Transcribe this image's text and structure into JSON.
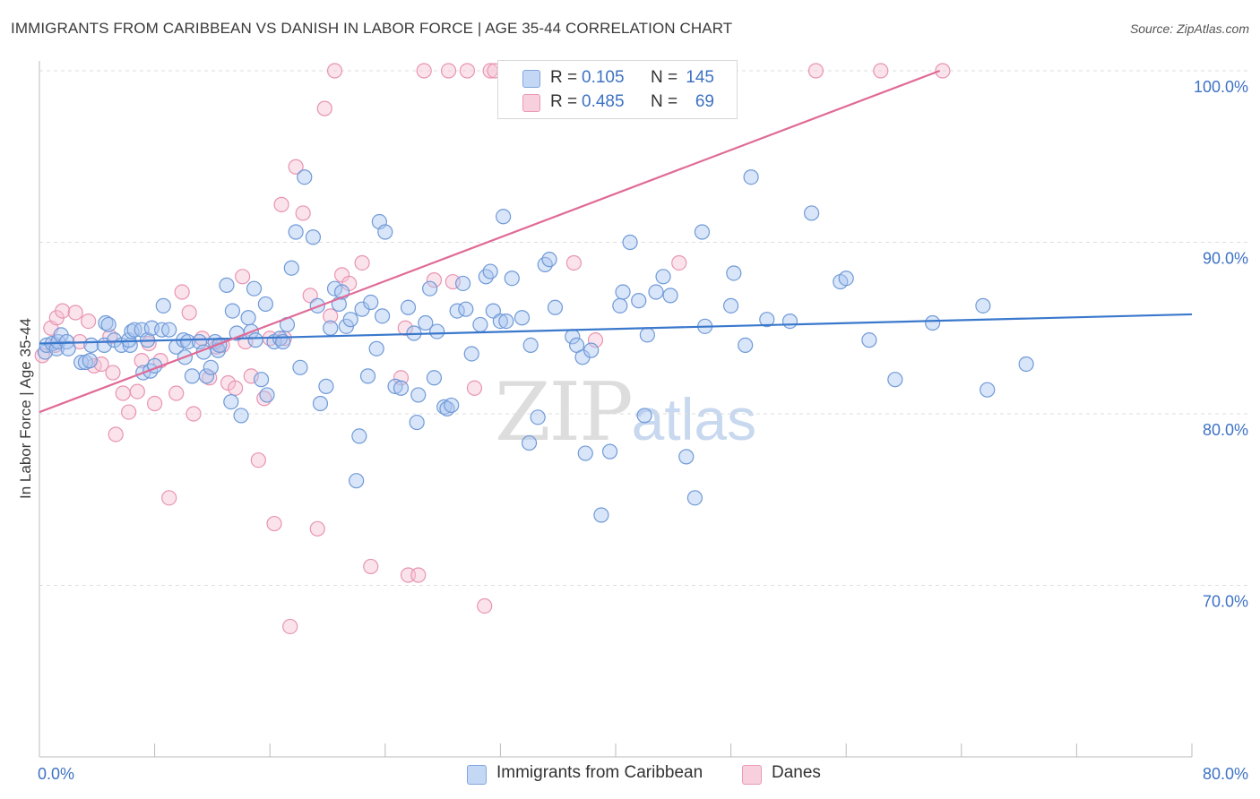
{
  "title": "IMMIGRANTS FROM CARIBBEAN VS DANISH IN LABOR FORCE | AGE 35-44 CORRELATION CHART",
  "source": "Source: ZipAtlas.com",
  "watermark": {
    "zip": "ZIP",
    "atlas": "atlas"
  },
  "legend": {
    "r_label": "R =",
    "n_label": "N =",
    "series": [
      {
        "name": "Immigrants from Caribbean",
        "r": "0.105",
        "n": "145"
      },
      {
        "name": "Danes",
        "r": "0.485",
        "n": "69"
      }
    ]
  },
  "colors": {
    "blue_fill": "#aac6f0",
    "blue_stroke": "#6f9ad8",
    "blue_line": "#3a78cc",
    "pink_fill": "#f6c1d2",
    "pink_stroke": "#e894b2",
    "pink_line": "#e06a96",
    "tick_text": "#3d72c4"
  },
  "chart_data": {
    "type": "scatter",
    "title": "IMMIGRANTS FROM CARIBBEAN VS DANISH IN LABOR FORCE | AGE 35-44 CORRELATION CHART",
    "xlabel": "",
    "ylabel": "In Labor Force | Age 35-44",
    "xlim": [
      0,
      80
    ],
    "ylim": [
      60,
      100
    ],
    "x_tick_labels": [
      "0.0%",
      "80.0%"
    ],
    "y_ticks": [
      70,
      80,
      90,
      100
    ],
    "y_tick_labels": [
      "70.0%",
      "80.0%",
      "90.0%",
      "100.0%"
    ],
    "grid": true,
    "series": [
      {
        "name": "Immigrants from Caribbean",
        "trend": {
          "x": [
            0,
            80
          ],
          "y": [
            84.1,
            85.8
          ]
        },
        "points": [
          [
            0.4,
            83.6
          ],
          [
            0.5,
            84.0
          ],
          [
            0.9,
            84.1
          ],
          [
            1.2,
            83.8
          ],
          [
            1.3,
            84.2
          ],
          [
            1.5,
            84.6
          ],
          [
            1.9,
            84.2
          ],
          [
            2.0,
            83.8
          ],
          [
            2.9,
            83.0
          ],
          [
            3.2,
            83.0
          ],
          [
            3.5,
            83.1
          ],
          [
            3.6,
            84.0
          ],
          [
            4.5,
            84.0
          ],
          [
            4.6,
            85.3
          ],
          [
            4.8,
            85.2
          ],
          [
            5.2,
            84.3
          ],
          [
            5.7,
            84.0
          ],
          [
            6.3,
            84.0
          ],
          [
            6.2,
            84.3
          ],
          [
            6.4,
            84.8
          ],
          [
            6.6,
            84.9
          ],
          [
            7.1,
            84.9
          ],
          [
            7.2,
            82.4
          ],
          [
            7.5,
            84.3
          ],
          [
            7.7,
            82.5
          ],
          [
            7.8,
            85.0
          ],
          [
            8.0,
            82.8
          ],
          [
            8.5,
            84.9
          ],
          [
            8.6,
            86.3
          ],
          [
            9.0,
            84.9
          ],
          [
            9.5,
            83.9
          ],
          [
            10.0,
            84.3
          ],
          [
            10.1,
            83.3
          ],
          [
            10.3,
            84.2
          ],
          [
            10.6,
            82.2
          ],
          [
            11.1,
            84.2
          ],
          [
            11.4,
            83.6
          ],
          [
            11.6,
            82.2
          ],
          [
            11.9,
            82.7
          ],
          [
            12.2,
            84.2
          ],
          [
            12.4,
            83.7
          ],
          [
            12.5,
            84.0
          ],
          [
            13.0,
            87.5
          ],
          [
            13.3,
            80.7
          ],
          [
            13.4,
            86.0
          ],
          [
            13.7,
            84.7
          ],
          [
            14.0,
            79.9
          ],
          [
            14.5,
            85.6
          ],
          [
            14.7,
            84.8
          ],
          [
            14.9,
            87.3
          ],
          [
            15.0,
            84.3
          ],
          [
            15.4,
            82.0
          ],
          [
            15.7,
            86.4
          ],
          [
            15.8,
            81.1
          ],
          [
            16.3,
            84.2
          ],
          [
            16.7,
            84.4
          ],
          [
            16.9,
            84.2
          ],
          [
            17.2,
            85.2
          ],
          [
            17.5,
            88.5
          ],
          [
            17.8,
            90.6
          ],
          [
            18.1,
            82.7
          ],
          [
            18.4,
            93.8
          ],
          [
            19.0,
            90.3
          ],
          [
            19.3,
            86.3
          ],
          [
            19.5,
            80.6
          ],
          [
            19.9,
            81.6
          ],
          [
            20.2,
            85.0
          ],
          [
            20.5,
            87.3
          ],
          [
            20.8,
            86.4
          ],
          [
            21.0,
            87.1
          ],
          [
            21.3,
            85.1
          ],
          [
            21.6,
            85.5
          ],
          [
            22.0,
            76.1
          ],
          [
            22.2,
            78.7
          ],
          [
            22.4,
            86.1
          ],
          [
            22.8,
            82.2
          ],
          [
            23.0,
            86.5
          ],
          [
            23.4,
            83.8
          ],
          [
            23.6,
            91.2
          ],
          [
            23.8,
            85.7
          ],
          [
            24.0,
            90.6
          ],
          [
            24.7,
            81.6
          ],
          [
            25.1,
            81.5
          ],
          [
            25.6,
            86.2
          ],
          [
            26.0,
            84.7
          ],
          [
            26.2,
            79.5
          ],
          [
            26.3,
            81.1
          ],
          [
            26.8,
            85.3
          ],
          [
            27.1,
            87.3
          ],
          [
            27.4,
            82.1
          ],
          [
            27.6,
            84.8
          ],
          [
            28.1,
            80.4
          ],
          [
            28.3,
            80.3
          ],
          [
            28.6,
            80.5
          ],
          [
            29.0,
            86.0
          ],
          [
            29.4,
            87.6
          ],
          [
            29.6,
            86.1
          ],
          [
            30.0,
            83.5
          ],
          [
            30.6,
            85.2
          ],
          [
            31.0,
            88.0
          ],
          [
            31.3,
            88.3
          ],
          [
            31.5,
            86.0
          ],
          [
            32.0,
            85.4
          ],
          [
            32.2,
            91.5
          ],
          [
            32.4,
            85.4
          ],
          [
            32.8,
            87.9
          ],
          [
            33.5,
            85.6
          ],
          [
            34.0,
            78.3
          ],
          [
            34.1,
            84.0
          ],
          [
            34.6,
            79.8
          ],
          [
            35.1,
            88.7
          ],
          [
            35.4,
            89.0
          ],
          [
            35.8,
            86.2
          ],
          [
            37.0,
            84.5
          ],
          [
            37.3,
            84.0
          ],
          [
            37.7,
            83.3
          ],
          [
            37.9,
            77.7
          ],
          [
            38.3,
            83.7
          ],
          [
            39.0,
            74.1
          ],
          [
            39.6,
            77.8
          ],
          [
            40.3,
            86.3
          ],
          [
            40.5,
            87.1
          ],
          [
            41.0,
            90.0
          ],
          [
            41.6,
            86.6
          ],
          [
            42.0,
            79.9
          ],
          [
            42.2,
            84.6
          ],
          [
            42.8,
            87.1
          ],
          [
            43.3,
            88.0
          ],
          [
            43.8,
            86.9
          ],
          [
            44.9,
            77.5
          ],
          [
            45.5,
            75.1
          ],
          [
            46.0,
            90.6
          ],
          [
            46.2,
            85.1
          ],
          [
            48.0,
            86.3
          ],
          [
            48.2,
            88.2
          ],
          [
            49.0,
            84.0
          ],
          [
            49.4,
            93.8
          ],
          [
            50.5,
            85.5
          ],
          [
            52.1,
            85.4
          ],
          [
            53.6,
            91.7
          ],
          [
            55.6,
            87.7
          ],
          [
            56.0,
            87.9
          ],
          [
            57.6,
            84.3
          ],
          [
            59.4,
            82.0
          ],
          [
            62.0,
            85.3
          ],
          [
            65.5,
            86.3
          ],
          [
            65.8,
            81.4
          ],
          [
            68.5,
            82.9
          ]
        ]
      },
      {
        "name": "Danes",
        "trend": {
          "x": [
            0,
            62.5
          ],
          "y": [
            80.1,
            100.0
          ]
        },
        "points": [
          [
            0.2,
            83.4
          ],
          [
            0.8,
            85.0
          ],
          [
            1.1,
            84.0
          ],
          [
            1.2,
            85.6
          ],
          [
            1.6,
            86.0
          ],
          [
            2.5,
            85.9
          ],
          [
            2.8,
            84.2
          ],
          [
            3.4,
            85.4
          ],
          [
            3.8,
            82.8
          ],
          [
            4.3,
            82.9
          ],
          [
            4.9,
            84.5
          ],
          [
            5.1,
            82.4
          ],
          [
            5.3,
            78.8
          ],
          [
            5.8,
            81.2
          ],
          [
            6.2,
            80.1
          ],
          [
            6.8,
            81.3
          ],
          [
            7.1,
            83.1
          ],
          [
            7.6,
            84.1
          ],
          [
            8.0,
            80.6
          ],
          [
            8.4,
            83.1
          ],
          [
            9.0,
            75.1
          ],
          [
            9.5,
            81.2
          ],
          [
            9.9,
            87.1
          ],
          [
            10.4,
            85.9
          ],
          [
            10.7,
            80.0
          ],
          [
            11.3,
            84.4
          ],
          [
            11.8,
            82.1
          ],
          [
            12.3,
            83.9
          ],
          [
            12.7,
            84.0
          ],
          [
            13.1,
            81.8
          ],
          [
            13.6,
            81.5
          ],
          [
            14.1,
            88.0
          ],
          [
            14.3,
            84.2
          ],
          [
            14.7,
            82.2
          ],
          [
            15.2,
            77.3
          ],
          [
            15.6,
            80.9
          ],
          [
            16.0,
            84.4
          ],
          [
            16.3,
            73.6
          ],
          [
            16.8,
            92.2
          ],
          [
            17.0,
            84.4
          ],
          [
            17.4,
            67.6
          ],
          [
            17.8,
            94.4
          ],
          [
            18.3,
            91.7
          ],
          [
            18.8,
            86.9
          ],
          [
            19.3,
            73.3
          ],
          [
            19.8,
            97.8
          ],
          [
            20.2,
            85.7
          ],
          [
            20.5,
            100.0
          ],
          [
            21.0,
            88.1
          ],
          [
            21.5,
            87.6
          ],
          [
            22.4,
            88.8
          ],
          [
            23.0,
            71.1
          ],
          [
            25.1,
            82.1
          ],
          [
            25.4,
            85.0
          ],
          [
            25.6,
            70.6
          ],
          [
            26.3,
            70.6
          ],
          [
            26.7,
            100.0
          ],
          [
            27.4,
            87.8
          ],
          [
            28.4,
            100.0
          ],
          [
            28.7,
            87.7
          ],
          [
            29.7,
            100.0
          ],
          [
            30.2,
            81.5
          ],
          [
            30.9,
            68.8
          ],
          [
            31.3,
            100.0
          ],
          [
            31.6,
            100.0
          ],
          [
            35.2,
            100.0
          ],
          [
            37.1,
            88.8
          ],
          [
            38.6,
            84.3
          ],
          [
            44.4,
            88.8
          ],
          [
            53.9,
            100.0
          ],
          [
            58.4,
            100.0
          ],
          [
            62.7,
            100.0
          ]
        ]
      }
    ]
  }
}
